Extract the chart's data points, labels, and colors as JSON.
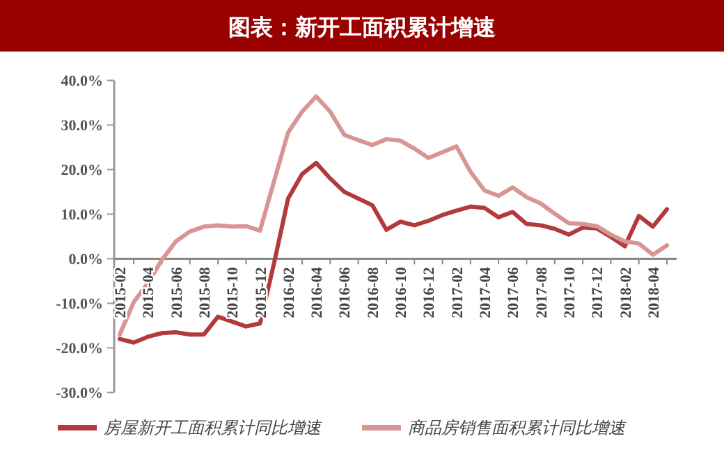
{
  "chart_data": {
    "type": "line",
    "title": "图表：新开工面积累计增速",
    "categories": [
      "2015-02",
      null,
      "2015-04",
      null,
      "2015-06",
      null,
      "2015-08",
      null,
      "2015-10",
      null,
      "2015-12",
      null,
      "2016-02",
      null,
      "2016-04",
      null,
      "2016-06",
      null,
      "2016-08",
      null,
      "2016-10",
      null,
      "2016-12",
      null,
      "2017-02",
      null,
      "2017-04",
      null,
      "2017-06",
      null,
      "2017-08",
      null,
      "2017-10",
      null,
      "2017-12",
      null,
      "2018-02",
      null,
      "2018-04",
      null
    ],
    "series": [
      {
        "name": "房屋新开工面积累计同比增速",
        "color": "#b23a3a",
        "values": [
          -18.0,
          -18.8,
          -17.5,
          -16.7,
          -16.5,
          -17.0,
          -17.0,
          -13.0,
          -14.1,
          -15.2,
          -14.5,
          -1.0,
          13.5,
          19.0,
          21.5,
          18.0,
          15.0,
          13.5,
          12.0,
          6.5,
          8.3,
          7.5,
          8.5,
          9.8,
          10.8,
          11.7,
          11.4,
          9.3,
          10.5,
          7.8,
          7.5,
          6.7,
          5.4,
          7.0,
          6.8,
          4.9,
          2.8,
          9.6,
          7.2,
          11.1
        ]
      },
      {
        "name": "商品房销售面积累计同比增速",
        "color": "#d99494",
        "values": [
          -17.0,
          -9.7,
          -5.5,
          -0.3,
          3.9,
          6.1,
          7.2,
          7.5,
          7.2,
          7.3,
          6.3,
          17.4,
          28.3,
          33.0,
          36.4,
          33.0,
          27.8,
          26.6,
          25.5,
          26.8,
          26.5,
          24.7,
          22.6,
          23.9,
          25.2,
          19.5,
          15.3,
          14.1,
          16.0,
          13.8,
          12.4,
          10.1,
          8.0,
          7.8,
          7.3,
          5.4,
          3.9,
          3.4,
          0.9,
          3.0
        ]
      }
    ],
    "ylim": [
      -30,
      40
    ],
    "yticks": [
      {
        "value": 40,
        "label": "40.0%"
      },
      {
        "value": 30,
        "label": "30.0%"
      },
      {
        "value": 20,
        "label": "20.0%"
      },
      {
        "value": 10,
        "label": "10.0%"
      },
      {
        "value": 0,
        "label": "0.0%"
      },
      {
        "value": -10,
        "label": "-10.0%"
      },
      {
        "value": -20,
        "label": "-20.0%"
      },
      {
        "value": -30,
        "label": "-30.0%"
      }
    ],
    "legend": "bottom",
    "grid": false
  }
}
